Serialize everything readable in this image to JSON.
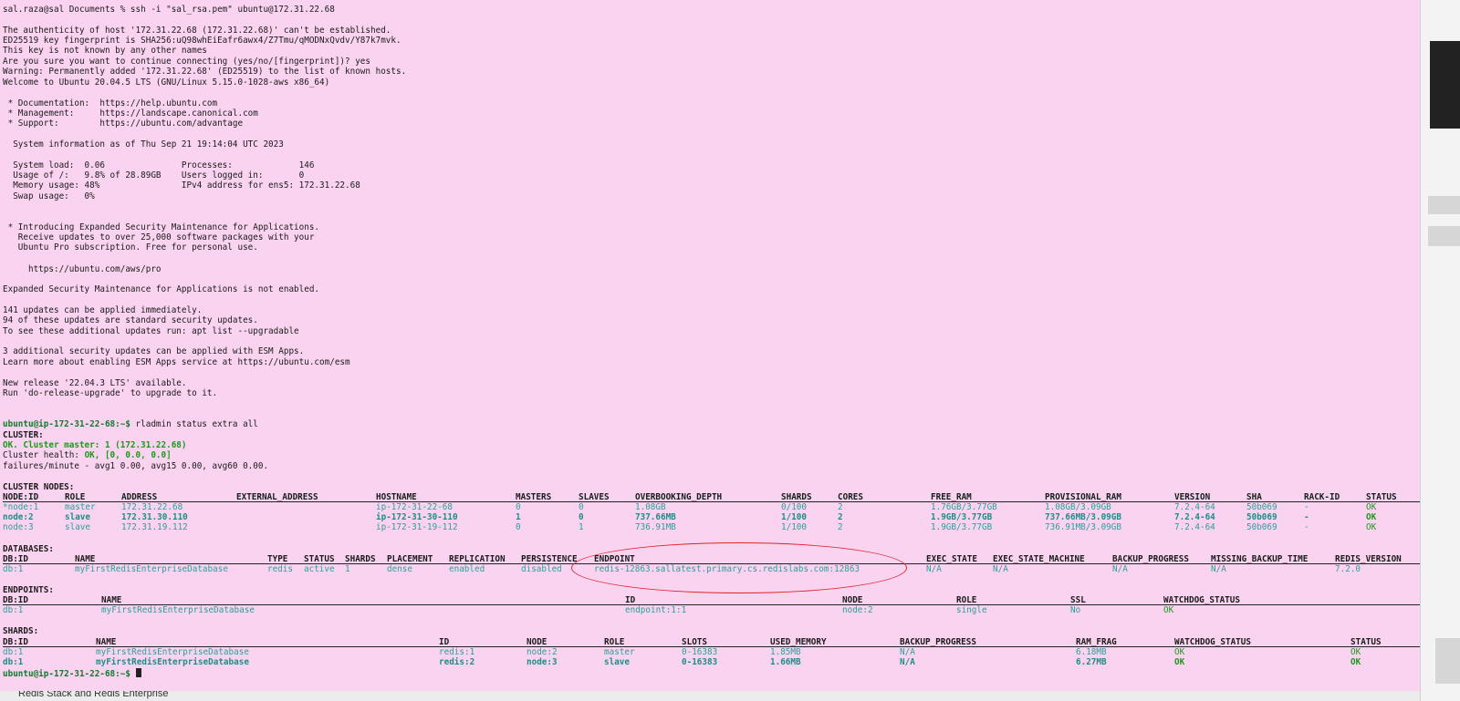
{
  "session": {
    "ssh_line": "sal.raza@sal Documents % ssh -i \"sal_rsa.pem\" ubuntu@172.31.22.68",
    "login_lines": [
      "The authenticity of host '172.31.22.68 (172.31.22.68)' can't be established.",
      "ED25519 key fingerprint is SHA256:uQ98whEiEafr6awx4/Z7Tmu/qMODNxQvdv/Y87k7mvk.",
      "This key is not known by any other names",
      "Are you sure you want to continue connecting (yes/no/[fingerprint])? yes",
      "Warning: Permanently added '172.31.22.68' (ED25519) to the list of known hosts.",
      "Welcome to Ubuntu 20.04.5 LTS (GNU/Linux 5.15.0-1028-aws x86_64)"
    ],
    "links": [
      " * Documentation:  https://help.ubuntu.com",
      " * Management:     https://landscape.canonical.com",
      " * Support:        https://ubuntu.com/advantage"
    ],
    "sysinfo_header": "  System information as of Thu Sep 21 19:14:04 UTC 2023",
    "sysinfo": [
      "  System load:  0.06               Processes:             146",
      "  Usage of /:   9.8% of 28.89GB    Users logged in:       0",
      "  Memory usage: 48%                IPv4 address for ens5: 172.31.22.68",
      "  Swap usage:   0%"
    ],
    "esm_intro": [
      " * Introducing Expanded Security Maintenance for Applications.",
      "   Receive updates to over 25,000 software packages with your",
      "   Ubuntu Pro subscription. Free for personal use."
    ],
    "esm_url": "     https://ubuntu.com/aws/pro",
    "esm_status": "Expanded Security Maintenance for Applications is not enabled.",
    "updates": [
      "141 updates can be applied immediately.",
      "94 of these updates are standard security updates.",
      "To see these additional updates run: apt list --upgradable"
    ],
    "esm_apps": [
      "3 additional security updates can be applied with ESM Apps.",
      "Learn more about enabling ESM Apps service at https://ubuntu.com/esm"
    ],
    "release": [
      "New release '22.04.3 LTS' available.",
      "Run 'do-release-upgrade' to upgrade to it."
    ]
  },
  "prompt": "ubuntu@ip-172-31-22-68:~$",
  "command": " rladmin status extra all",
  "cluster": {
    "label": "CLUSTER:",
    "ok_line": "OK. Cluster master: 1 (172.31.22.68)",
    "health_label": "Cluster health: ",
    "health_value": "OK, [0, 0.0, 0.0]",
    "failures": "failures/minute - avg1 0.00, avg15 0.00, avg60 0.00."
  },
  "cluster_nodes": {
    "label": "CLUSTER NODES:",
    "headers": [
      "NODE:ID",
      "ROLE",
      "ADDRESS",
      "EXTERNAL_ADDRESS",
      "HOSTNAME",
      "MASTERS",
      "SLAVES",
      "OVERBOOKING_DEPTH",
      "SHARDS",
      "CORES",
      "FREE_RAM",
      "PROVISIONAL_RAM",
      "VERSION",
      "SHA",
      "RACK-ID",
      "STATUS"
    ],
    "rows": [
      [
        "*node:1",
        "master",
        "172.31.22.68",
        "",
        "ip-172-31-22-68",
        "0",
        "0",
        "1.08GB",
        "0/100",
        "2",
        "1.76GB/3.77GB",
        "1.08GB/3.09GB",
        "7.2.4-64",
        "50b069",
        "-",
        "OK"
      ],
      [
        "node:2",
        "slave",
        "172.31.30.110",
        "",
        "ip-172-31-30-110",
        "1",
        "0",
        "737.66MB",
        "1/100",
        "2",
        "1.9GB/3.77GB",
        "737.66MB/3.09GB",
        "7.2.4-64",
        "50b069",
        "-",
        "OK"
      ],
      [
        "node:3",
        "slave",
        "172.31.19.112",
        "",
        "ip-172-31-19-112",
        "0",
        "1",
        "736.91MB",
        "1/100",
        "2",
        "1.9GB/3.77GB",
        "736.91MB/3.09GB",
        "7.2.4-64",
        "50b069",
        "-",
        "OK"
      ]
    ]
  },
  "databases": {
    "label": "DATABASES:",
    "headers": [
      "DB:ID",
      "NAME",
      "TYPE",
      "STATUS",
      "SHARDS",
      "PLACEMENT",
      "REPLICATION",
      "PERSISTENCE",
      "ENDPOINT",
      "EXEC_STATE",
      "EXEC_STATE_MACHINE",
      "BACKUP_PROGRESS",
      "MISSING_BACKUP_TIME",
      "REDIS_VERSION"
    ],
    "rows": [
      [
        "db:1",
        "myFirstRedisEnterpriseDatabase",
        "redis",
        "active",
        "1",
        "dense",
        "enabled",
        "disabled",
        "redis-12863.sallatest.primary.cs.redislabs.com:12863",
        "N/A",
        "N/A",
        "N/A",
        "N/A",
        "7.2.0"
      ]
    ]
  },
  "endpoints": {
    "label": "ENDPOINTS:",
    "headers": [
      "DB:ID",
      "NAME",
      "ID",
      "NODE",
      "ROLE",
      "SSL",
      "WATCHDOG_STATUS"
    ],
    "rows": [
      [
        "db:1",
        "myFirstRedisEnterpriseDatabase",
        "endpoint:1:1",
        "node:2",
        "single",
        "No",
        "OK"
      ]
    ]
  },
  "shards": {
    "label": "SHARDS:",
    "headers": [
      "DB:ID",
      "NAME",
      "ID",
      "NODE",
      "ROLE",
      "SLOTS",
      "USED_MEMORY",
      "BACKUP_PROGRESS",
      "RAM_FRAG",
      "WATCHDOG_STATUS",
      "STATUS"
    ],
    "rows": [
      [
        "db:1",
        "myFirstRedisEnterpriseDatabase",
        "redis:1",
        "node:2",
        "master",
        "0-16383",
        "1.85MB",
        "N/A",
        "6.18MB",
        "OK",
        "OK"
      ],
      [
        "db:1",
        "myFirstRedisEnterpriseDatabase",
        "redis:2",
        "node:3",
        "slave",
        "0-16383",
        "1.66MB",
        "N/A",
        "6.27MB",
        "OK",
        "OK"
      ]
    ]
  },
  "bottom_peek": "Redis Stack and Redis Enterprise",
  "colors": {
    "background": "#f9d3ef",
    "prompt": "#117a2c",
    "value": "#2aa19a",
    "ok": "#1a9a1a",
    "annotation": "#e0232a"
  }
}
